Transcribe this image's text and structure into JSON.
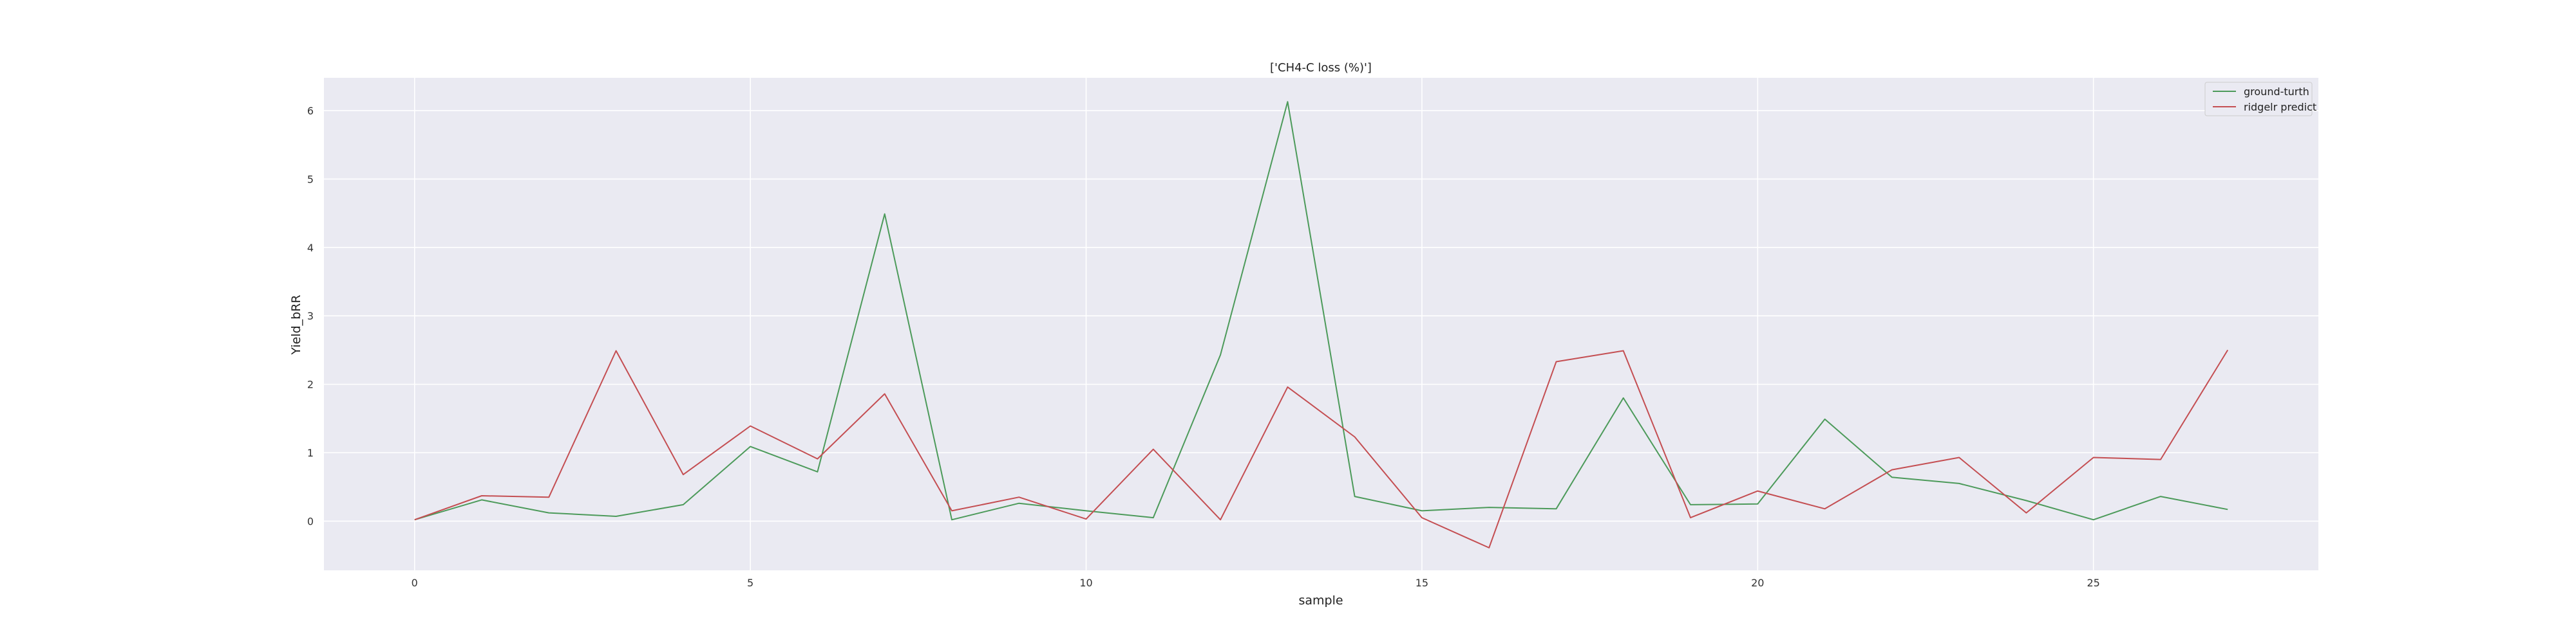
{
  "chart_data": {
    "type": "line",
    "title": "['CH4-C loss (%)']",
    "xlabel": "sample",
    "ylabel": "Yield_bRR",
    "x": [
      0,
      1,
      2,
      3,
      4,
      5,
      6,
      7,
      8,
      9,
      10,
      11,
      12,
      13,
      14,
      15,
      16,
      17,
      18,
      19,
      20,
      21,
      22,
      23,
      24,
      25,
      26,
      27
    ],
    "xlim": [
      -1.35,
      28.35
    ],
    "ylim": [
      -0.72,
      6.48
    ],
    "x_ticks": [
      0,
      5,
      10,
      15,
      20,
      25
    ],
    "y_ticks": [
      0,
      1,
      2,
      3,
      4,
      5,
      6
    ],
    "grid": true,
    "legend_position": "top-right",
    "background": "#EAEAF2",
    "series": [
      {
        "name": "ground-turth",
        "color": "#4C9A5A",
        "values": [
          0.02,
          0.31,
          0.12,
          0.07,
          0.24,
          1.09,
          0.72,
          4.49,
          0.02,
          0.26,
          0.15,
          0.05,
          2.43,
          6.13,
          0.36,
          0.15,
          0.2,
          0.18,
          1.8,
          0.24,
          0.25,
          1.49,
          0.64,
          0.55,
          0.3,
          0.02,
          0.36,
          0.17
        ]
      },
      {
        "name": "ridgelr predict",
        "color": "#C44E52",
        "values": [
          0.02,
          0.37,
          0.35,
          2.49,
          0.68,
          1.39,
          0.91,
          1.86,
          0.15,
          0.35,
          0.03,
          1.05,
          0.02,
          1.96,
          1.23,
          0.05,
          -0.39,
          2.33,
          2.49,
          0.05,
          0.44,
          0.18,
          0.75,
          0.93,
          0.12,
          0.93,
          0.9,
          2.5
        ]
      }
    ]
  }
}
